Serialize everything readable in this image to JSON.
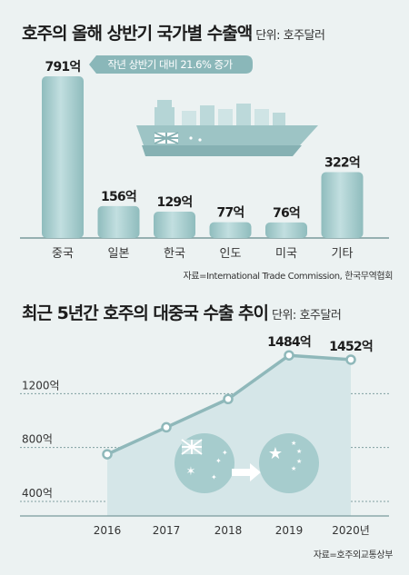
{
  "chart1": {
    "title": "호주의 올해 상반기 국가별 수출액",
    "unit": "단위: 호주달러",
    "annotation": "작년 상반기 대비 21.6% 증가",
    "source": "자료=International Trade Commission, 한국무역협회"
  },
  "chart2": {
    "title": "최근 5년간 호주의 대중국 수출 추이",
    "unit": "단위: 호주달러",
    "source": "자료=호주외교통상부"
  },
  "colors": {
    "bar": "#a6cccd",
    "line": "#8fb8ba",
    "area": "#d5e6e8",
    "background": "#ecf2f2",
    "callout": "#8ab7b9"
  },
  "chart_data": [
    {
      "type": "bar",
      "title": "호주의 올해 상반기 국가별 수출액",
      "categories": [
        "중국",
        "일본",
        "한국",
        "인도",
        "미국",
        "기타"
      ],
      "values": [
        791,
        156,
        129,
        77,
        76,
        322
      ],
      "value_labels": [
        "791억",
        "156억",
        "129억",
        "77억",
        "76억",
        "322억"
      ],
      "ylim": [
        0,
        800
      ],
      "grid": false
    },
    {
      "type": "line",
      "title": "최근 5년간 호주의 대중국 수출 추이",
      "x": [
        "2016",
        "2017",
        "2018",
        "2019",
        "2020년"
      ],
      "values": [
        750,
        950,
        1160,
        1484,
        1452
      ],
      "value_labels": [
        "",
        "",
        "",
        "1484억",
        "1452억"
      ],
      "yticks": [
        400,
        800,
        1200
      ],
      "ytick_labels": [
        "400억",
        "800억",
        "1200억"
      ],
      "ylim": [
        400,
        1600
      ],
      "grid": true
    }
  ]
}
